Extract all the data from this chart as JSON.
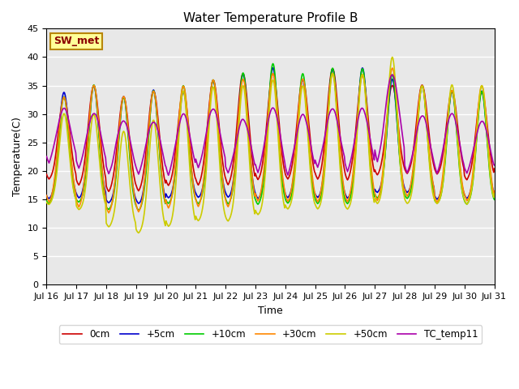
{
  "title": "Water Temperature Profile B",
  "xlabel": "Time",
  "ylabel": "Temperature(C)",
  "xlim": [
    0,
    360
  ],
  "ylim": [
    0,
    45
  ],
  "yticks": [
    0,
    5,
    10,
    15,
    20,
    25,
    30,
    35,
    40,
    45
  ],
  "xtick_labels": [
    "Jul 16",
    "Jul 17",
    "Jul 18",
    "Jul 19",
    "Jul 20",
    "Jul 21",
    "Jul 22",
    "Jul 23",
    "Jul 24",
    "Jul 25",
    "Jul 26",
    "Jul 27",
    "Jul 28",
    "Jul 29",
    "Jul 30",
    "Jul 31"
  ],
  "series": [
    "0cm",
    "+5cm",
    "+10cm",
    "+30cm",
    "+50cm",
    "TC_temp11"
  ],
  "colors": [
    "#cc0000",
    "#0000cc",
    "#00cc00",
    "#ff8800",
    "#cccc00",
    "#aa00aa"
  ],
  "legend_label": "SW_met",
  "plot_bg_color": "#e8e8e8",
  "grid_color": "#ffffff",
  "linewidth": 1.2,
  "figwidth": 6.4,
  "figheight": 4.8,
  "dpi": 100
}
